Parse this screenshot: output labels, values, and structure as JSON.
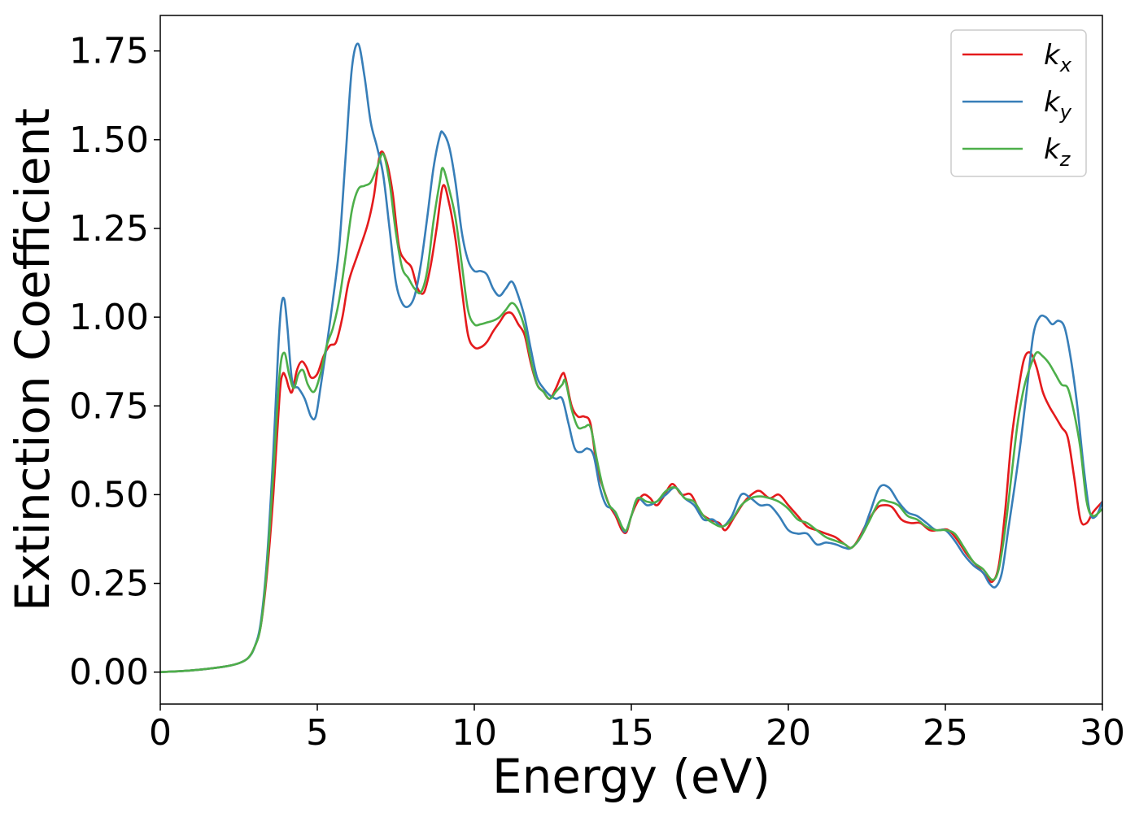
{
  "chart_data": {
    "type": "line",
    "xlabel": "Energy (eV)",
    "ylabel": "Extinction Coefficient",
    "xlim": [
      0,
      30
    ],
    "ylim": [
      -0.09,
      1.85
    ],
    "xticks": [
      0,
      5,
      10,
      15,
      20,
      25,
      30
    ],
    "xtick_labels": [
      "0",
      "5",
      "10",
      "15",
      "20",
      "25",
      "30"
    ],
    "yticks": [
      0,
      0.25,
      0.5,
      0.75,
      1.0,
      1.25,
      1.5,
      1.75
    ],
    "ytick_labels": [
      "0.00",
      "0.25",
      "0.50",
      "0.75",
      "1.00",
      "1.25",
      "1.50",
      "1.75"
    ],
    "grid": false,
    "legend": {
      "placement": "top-right"
    },
    "series": [
      {
        "name": "k_x",
        "label_main": "k",
        "label_sub": "x",
        "color": "#e41a1c",
        "x": [
          0,
          1,
          2,
          2.5,
          2.8,
          3.0,
          3.2,
          3.4,
          3.6,
          3.8,
          3.9,
          4.0,
          4.1,
          4.2,
          4.35,
          4.5,
          4.65,
          4.8,
          5.0,
          5.2,
          5.4,
          5.6,
          5.8,
          6.0,
          6.3,
          6.6,
          6.8,
          7.0,
          7.2,
          7.4,
          7.6,
          7.8,
          8.0,
          8.2,
          8.4,
          8.6,
          8.8,
          9.0,
          9.2,
          9.4,
          9.6,
          9.8,
          10.0,
          10.2,
          10.4,
          10.6,
          10.8,
          11.0,
          11.2,
          11.4,
          11.6,
          11.8,
          12.0,
          12.2,
          12.4,
          12.6,
          12.8,
          12.9,
          13.1,
          13.3,
          13.5,
          13.7,
          13.9,
          14.1,
          14.3,
          14.5,
          14.7,
          14.85,
          15.0,
          15.2,
          15.4,
          15.6,
          15.8,
          16.0,
          16.3,
          16.6,
          16.9,
          17.2,
          17.5,
          17.8,
          18.0,
          18.3,
          18.6,
          18.9,
          19.1,
          19.4,
          19.7,
          20.0,
          20.3,
          20.6,
          20.9,
          21.2,
          21.5,
          21.8,
          22.0,
          22.2,
          22.5,
          22.8,
          23.0,
          23.3,
          23.6,
          23.9,
          24.2,
          24.5,
          24.8,
          25.1,
          25.4,
          25.7,
          26.0,
          26.3,
          26.5,
          26.7,
          26.9,
          27.1,
          27.3,
          27.5,
          27.7,
          27.9,
          28.1,
          28.3,
          28.5,
          28.7,
          28.9,
          29.1,
          29.3,
          29.5,
          29.7,
          30.0
        ],
        "y": [
          0.0,
          0.005,
          0.015,
          0.025,
          0.04,
          0.07,
          0.13,
          0.28,
          0.5,
          0.78,
          0.84,
          0.83,
          0.8,
          0.79,
          0.85,
          0.875,
          0.86,
          0.83,
          0.84,
          0.89,
          0.92,
          0.93,
          1.0,
          1.1,
          1.18,
          1.26,
          1.34,
          1.46,
          1.44,
          1.35,
          1.2,
          1.16,
          1.14,
          1.08,
          1.07,
          1.14,
          1.25,
          1.37,
          1.32,
          1.22,
          1.08,
          0.95,
          0.915,
          0.915,
          0.93,
          0.96,
          0.985,
          1.01,
          1.01,
          0.98,
          0.95,
          0.87,
          0.81,
          0.79,
          0.77,
          0.8,
          0.84,
          0.83,
          0.75,
          0.72,
          0.72,
          0.7,
          0.58,
          0.52,
          0.47,
          0.44,
          0.4,
          0.395,
          0.44,
          0.48,
          0.5,
          0.49,
          0.47,
          0.49,
          0.53,
          0.5,
          0.5,
          0.45,
          0.43,
          0.42,
          0.4,
          0.44,
          0.48,
          0.505,
          0.51,
          0.49,
          0.5,
          0.47,
          0.44,
          0.41,
          0.4,
          0.39,
          0.38,
          0.36,
          0.35,
          0.37,
          0.42,
          0.46,
          0.47,
          0.465,
          0.43,
          0.42,
          0.42,
          0.4,
          0.4,
          0.4,
          0.37,
          0.33,
          0.3,
          0.27,
          0.255,
          0.3,
          0.45,
          0.65,
          0.78,
          0.88,
          0.9,
          0.86,
          0.79,
          0.75,
          0.72,
          0.69,
          0.66,
          0.55,
          0.43,
          0.42,
          0.45,
          0.48
        ]
      },
      {
        "name": "k_y",
        "label_main": "k",
        "label_sub": "y",
        "color": "#377eb8",
        "x": [
          0,
          1,
          2,
          2.5,
          2.8,
          3.0,
          3.2,
          3.4,
          3.6,
          3.75,
          3.85,
          3.95,
          4.05,
          4.2,
          4.4,
          4.6,
          4.8,
          4.95,
          5.1,
          5.3,
          5.5,
          5.7,
          5.9,
          6.1,
          6.3,
          6.5,
          6.7,
          6.9,
          7.1,
          7.3,
          7.5,
          7.7,
          7.9,
          8.1,
          8.3,
          8.5,
          8.7,
          8.9,
          9.0,
          9.2,
          9.4,
          9.6,
          9.8,
          10.0,
          10.2,
          10.4,
          10.6,
          10.8,
          11.0,
          11.2,
          11.4,
          11.6,
          11.8,
          12.0,
          12.2,
          12.4,
          12.6,
          12.8,
          13.0,
          13.2,
          13.4,
          13.6,
          13.8,
          14.0,
          14.2,
          14.4,
          14.6,
          14.8,
          15.0,
          15.2,
          15.5,
          15.8,
          16.1,
          16.4,
          16.7,
          17.0,
          17.3,
          17.6,
          17.9,
          18.2,
          18.5,
          18.8,
          19.1,
          19.4,
          19.7,
          20.0,
          20.3,
          20.6,
          20.9,
          21.2,
          21.5,
          21.8,
          22.0,
          22.3,
          22.6,
          22.9,
          23.2,
          23.5,
          23.8,
          24.1,
          24.4,
          24.7,
          25.0,
          25.3,
          25.6,
          25.9,
          26.2,
          26.4,
          26.6,
          26.8,
          27.0,
          27.2,
          27.4,
          27.6,
          27.8,
          28.0,
          28.2,
          28.4,
          28.6,
          28.8,
          29.0,
          29.2,
          29.4,
          29.6,
          29.8,
          30.0
        ],
        "y": [
          0.0,
          0.005,
          0.015,
          0.025,
          0.04,
          0.07,
          0.14,
          0.32,
          0.62,
          0.9,
          1.03,
          1.05,
          0.97,
          0.82,
          0.8,
          0.77,
          0.72,
          0.72,
          0.8,
          0.92,
          1.05,
          1.2,
          1.45,
          1.7,
          1.77,
          1.68,
          1.55,
          1.48,
          1.4,
          1.25,
          1.1,
          1.04,
          1.03,
          1.06,
          1.15,
          1.28,
          1.42,
          1.51,
          1.52,
          1.48,
          1.38,
          1.24,
          1.16,
          1.13,
          1.13,
          1.12,
          1.08,
          1.06,
          1.08,
          1.1,
          1.06,
          1.0,
          0.91,
          0.83,
          0.8,
          0.78,
          0.77,
          0.77,
          0.7,
          0.63,
          0.62,
          0.63,
          0.61,
          0.52,
          0.47,
          0.46,
          0.43,
          0.395,
          0.44,
          0.49,
          0.47,
          0.48,
          0.5,
          0.52,
          0.49,
          0.47,
          0.43,
          0.43,
          0.41,
          0.44,
          0.5,
          0.49,
          0.47,
          0.47,
          0.44,
          0.4,
          0.39,
          0.39,
          0.36,
          0.365,
          0.36,
          0.35,
          0.35,
          0.38,
          0.45,
          0.52,
          0.52,
          0.48,
          0.45,
          0.44,
          0.42,
          0.4,
          0.4,
          0.37,
          0.33,
          0.3,
          0.28,
          0.25,
          0.24,
          0.28,
          0.4,
          0.52,
          0.65,
          0.8,
          0.95,
          1.0,
          1.0,
          0.98,
          0.99,
          0.97,
          0.88,
          0.75,
          0.58,
          0.45,
          0.44,
          0.48
        ]
      },
      {
        "name": "k_z",
        "label_main": "k",
        "label_sub": "z",
        "color": "#4daf4a",
        "x": [
          0,
          1,
          2,
          2.5,
          2.8,
          3.0,
          3.2,
          3.4,
          3.6,
          3.8,
          3.95,
          4.1,
          4.25,
          4.4,
          4.55,
          4.7,
          4.9,
          5.1,
          5.3,
          5.5,
          5.7,
          5.9,
          6.1,
          6.3,
          6.5,
          6.7,
          6.9,
          7.1,
          7.3,
          7.5,
          7.7,
          7.9,
          8.1,
          8.3,
          8.5,
          8.7,
          8.9,
          9.0,
          9.2,
          9.4,
          9.6,
          9.8,
          10.0,
          10.2,
          10.4,
          10.6,
          10.8,
          11.0,
          11.2,
          11.4,
          11.6,
          11.8,
          12.0,
          12.2,
          12.4,
          12.6,
          12.8,
          12.9,
          13.1,
          13.3,
          13.5,
          13.7,
          13.9,
          14.1,
          14.3,
          14.5,
          14.7,
          14.85,
          15.0,
          15.2,
          15.5,
          15.8,
          16.1,
          16.4,
          16.7,
          17.0,
          17.3,
          17.6,
          17.9,
          18.2,
          18.5,
          18.8,
          19.1,
          19.4,
          19.7,
          20.0,
          20.3,
          20.6,
          20.9,
          21.2,
          21.5,
          21.8,
          22.0,
          22.3,
          22.6,
          22.9,
          23.2,
          23.5,
          23.8,
          24.1,
          24.4,
          24.7,
          25.0,
          25.3,
          25.6,
          25.9,
          26.2,
          26.5,
          26.7,
          26.9,
          27.1,
          27.3,
          27.5,
          27.7,
          27.9,
          28.1,
          28.3,
          28.5,
          28.7,
          28.9,
          29.1,
          29.3,
          29.5,
          29.7,
          30.0
        ],
        "y": [
          0.0,
          0.005,
          0.015,
          0.025,
          0.04,
          0.07,
          0.13,
          0.3,
          0.56,
          0.84,
          0.9,
          0.84,
          0.8,
          0.84,
          0.85,
          0.81,
          0.79,
          0.84,
          0.92,
          0.97,
          1.05,
          1.17,
          1.3,
          1.36,
          1.37,
          1.38,
          1.42,
          1.46,
          1.38,
          1.24,
          1.14,
          1.11,
          1.08,
          1.07,
          1.13,
          1.27,
          1.38,
          1.42,
          1.36,
          1.28,
          1.15,
          1.02,
          0.98,
          0.98,
          0.985,
          0.99,
          1.0,
          1.02,
          1.04,
          1.02,
          0.97,
          0.88,
          0.81,
          0.79,
          0.77,
          0.79,
          0.81,
          0.82,
          0.74,
          0.69,
          0.69,
          0.69,
          0.6,
          0.52,
          0.47,
          0.45,
          0.41,
          0.4,
          0.44,
          0.49,
          0.48,
          0.48,
          0.51,
          0.52,
          0.49,
          0.48,
          0.44,
          0.42,
          0.41,
          0.43,
          0.47,
          0.49,
          0.495,
          0.49,
          0.48,
          0.46,
          0.43,
          0.42,
          0.4,
          0.38,
          0.37,
          0.36,
          0.35,
          0.38,
          0.43,
          0.48,
          0.48,
          0.47,
          0.44,
          0.43,
          0.41,
          0.4,
          0.4,
          0.39,
          0.35,
          0.31,
          0.29,
          0.26,
          0.29,
          0.4,
          0.55,
          0.7,
          0.8,
          0.86,
          0.9,
          0.89,
          0.87,
          0.84,
          0.81,
          0.8,
          0.73,
          0.63,
          0.48,
          0.44,
          0.46
        ]
      }
    ]
  }
}
